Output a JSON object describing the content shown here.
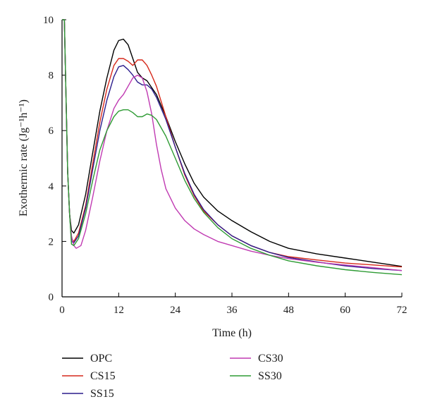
{
  "chart_data": {
    "type": "line",
    "xlabel": "Time (h)",
    "ylabel": "Exothermic rate (Jg⁻¹h⁻¹)",
    "xlim": [
      0,
      72
    ],
    "ylim": [
      0,
      10
    ],
    "xticks": [
      0,
      12,
      24,
      36,
      48,
      60,
      72
    ],
    "yticks": [
      0,
      2,
      4,
      6,
      8,
      10
    ],
    "grid": false,
    "legend_position": "bottom",
    "series": [
      {
        "name": "OPC",
        "color": "#000000",
        "points": [
          [
            0,
            10
          ],
          [
            0.5,
            10
          ],
          [
            0.8,
            7.5
          ],
          [
            1.2,
            4.5
          ],
          [
            1.6,
            3.0
          ],
          [
            2,
            2.4
          ],
          [
            2.5,
            2.3
          ],
          [
            3.5,
            2.6
          ],
          [
            5,
            3.7
          ],
          [
            6.5,
            5.2
          ],
          [
            8,
            6.7
          ],
          [
            9.5,
            7.9
          ],
          [
            11,
            8.9
          ],
          [
            12,
            9.25
          ],
          [
            13,
            9.3
          ],
          [
            14,
            9.1
          ],
          [
            15,
            8.6
          ],
          [
            16,
            8.1
          ],
          [
            17,
            7.9
          ],
          [
            18,
            7.8
          ],
          [
            20,
            7.3
          ],
          [
            22,
            6.5
          ],
          [
            24,
            5.6
          ],
          [
            26,
            4.8
          ],
          [
            28,
            4.1
          ],
          [
            30,
            3.6
          ],
          [
            33,
            3.1
          ],
          [
            36,
            2.75
          ],
          [
            40,
            2.35
          ],
          [
            44,
            2.0
          ],
          [
            48,
            1.75
          ],
          [
            54,
            1.55
          ],
          [
            60,
            1.4
          ],
          [
            66,
            1.25
          ],
          [
            72,
            1.1
          ]
        ]
      },
      {
        "name": "CS15",
        "color": "#d6291b",
        "points": [
          [
            0,
            10
          ],
          [
            0.5,
            10
          ],
          [
            0.8,
            7.5
          ],
          [
            1.2,
            4.5
          ],
          [
            1.6,
            3.0
          ],
          [
            2,
            2.1
          ],
          [
            2.5,
            2.0
          ],
          [
            3.5,
            2.3
          ],
          [
            5,
            3.3
          ],
          [
            6.5,
            4.8
          ],
          [
            8,
            6.3
          ],
          [
            9.5,
            7.5
          ],
          [
            11,
            8.35
          ],
          [
            12,
            8.6
          ],
          [
            13,
            8.6
          ],
          [
            14,
            8.5
          ],
          [
            15,
            8.35
          ],
          [
            16,
            8.55
          ],
          [
            17,
            8.55
          ],
          [
            18,
            8.35
          ],
          [
            19,
            8.0
          ],
          [
            20,
            7.6
          ],
          [
            22,
            6.5
          ],
          [
            24,
            5.4
          ],
          [
            26,
            4.4
          ],
          [
            28,
            3.65
          ],
          [
            30,
            3.1
          ],
          [
            33,
            2.6
          ],
          [
            36,
            2.2
          ],
          [
            40,
            1.85
          ],
          [
            44,
            1.6
          ],
          [
            48,
            1.45
          ],
          [
            54,
            1.33
          ],
          [
            60,
            1.22
          ],
          [
            66,
            1.15
          ],
          [
            72,
            1.08
          ]
        ]
      },
      {
        "name": "SS15",
        "color": "#2c1d8c",
        "points": [
          [
            0,
            10
          ],
          [
            0.5,
            10
          ],
          [
            0.8,
            7.5
          ],
          [
            1.2,
            4.5
          ],
          [
            1.6,
            3.0
          ],
          [
            2,
            2.0
          ],
          [
            2.5,
            1.95
          ],
          [
            3.5,
            2.2
          ],
          [
            5,
            3.2
          ],
          [
            6.5,
            4.6
          ],
          [
            8,
            6.0
          ],
          [
            9.5,
            7.1
          ],
          [
            11,
            7.95
          ],
          [
            12,
            8.3
          ],
          [
            13,
            8.35
          ],
          [
            14,
            8.2
          ],
          [
            15,
            8.0
          ],
          [
            16,
            7.75
          ],
          [
            17,
            7.65
          ],
          [
            18,
            7.65
          ],
          [
            19,
            7.5
          ],
          [
            20,
            7.2
          ],
          [
            22,
            6.4
          ],
          [
            24,
            5.4
          ],
          [
            26,
            4.45
          ],
          [
            28,
            3.7
          ],
          [
            30,
            3.15
          ],
          [
            33,
            2.6
          ],
          [
            36,
            2.2
          ],
          [
            40,
            1.85
          ],
          [
            44,
            1.6
          ],
          [
            48,
            1.42
          ],
          [
            54,
            1.26
          ],
          [
            60,
            1.12
          ],
          [
            66,
            1.02
          ],
          [
            72,
            0.95
          ]
        ]
      },
      {
        "name": "CS30",
        "color": "#c03ab2",
        "points": [
          [
            0,
            10
          ],
          [
            0.5,
            10
          ],
          [
            0.8,
            7.5
          ],
          [
            1.2,
            4.5
          ],
          [
            1.6,
            3.0
          ],
          [
            2,
            2.2
          ],
          [
            2.5,
            1.85
          ],
          [
            3,
            1.75
          ],
          [
            4,
            1.85
          ],
          [
            5,
            2.4
          ],
          [
            6.5,
            3.6
          ],
          [
            8,
            4.9
          ],
          [
            9.5,
            6.0
          ],
          [
            11,
            6.8
          ],
          [
            12,
            7.1
          ],
          [
            13,
            7.3
          ],
          [
            14,
            7.6
          ],
          [
            15,
            7.9
          ],
          [
            16,
            8.0
          ],
          [
            17,
            7.9
          ],
          [
            18,
            7.4
          ],
          [
            19,
            6.6
          ],
          [
            20,
            5.5
          ],
          [
            21,
            4.6
          ],
          [
            22,
            3.9
          ],
          [
            24,
            3.2
          ],
          [
            26,
            2.75
          ],
          [
            28,
            2.45
          ],
          [
            30,
            2.25
          ],
          [
            33,
            2.0
          ],
          [
            36,
            1.85
          ],
          [
            40,
            1.65
          ],
          [
            44,
            1.5
          ],
          [
            48,
            1.38
          ],
          [
            54,
            1.25
          ],
          [
            60,
            1.15
          ],
          [
            66,
            1.05
          ],
          [
            72,
            0.95
          ]
        ]
      },
      {
        "name": "SS30",
        "color": "#2e9b34",
        "points": [
          [
            0,
            10
          ],
          [
            0.5,
            10
          ],
          [
            0.8,
            7.5
          ],
          [
            1.2,
            4.5
          ],
          [
            1.6,
            3.0
          ],
          [
            2,
            1.9
          ],
          [
            2.5,
            1.85
          ],
          [
            3.5,
            2.1
          ],
          [
            5,
            3.0
          ],
          [
            6.5,
            4.2
          ],
          [
            8,
            5.3
          ],
          [
            9.5,
            6.0
          ],
          [
            11,
            6.5
          ],
          [
            12,
            6.7
          ],
          [
            13,
            6.75
          ],
          [
            14,
            6.75
          ],
          [
            15,
            6.65
          ],
          [
            16,
            6.5
          ],
          [
            17,
            6.5
          ],
          [
            18,
            6.6
          ],
          [
            19,
            6.55
          ],
          [
            20,
            6.4
          ],
          [
            22,
            5.8
          ],
          [
            24,
            5.0
          ],
          [
            26,
            4.2
          ],
          [
            28,
            3.55
          ],
          [
            30,
            3.05
          ],
          [
            33,
            2.5
          ],
          [
            36,
            2.1
          ],
          [
            40,
            1.75
          ],
          [
            44,
            1.5
          ],
          [
            48,
            1.3
          ],
          [
            54,
            1.12
          ],
          [
            60,
            0.98
          ],
          [
            66,
            0.88
          ],
          [
            72,
            0.8
          ]
        ]
      }
    ]
  }
}
